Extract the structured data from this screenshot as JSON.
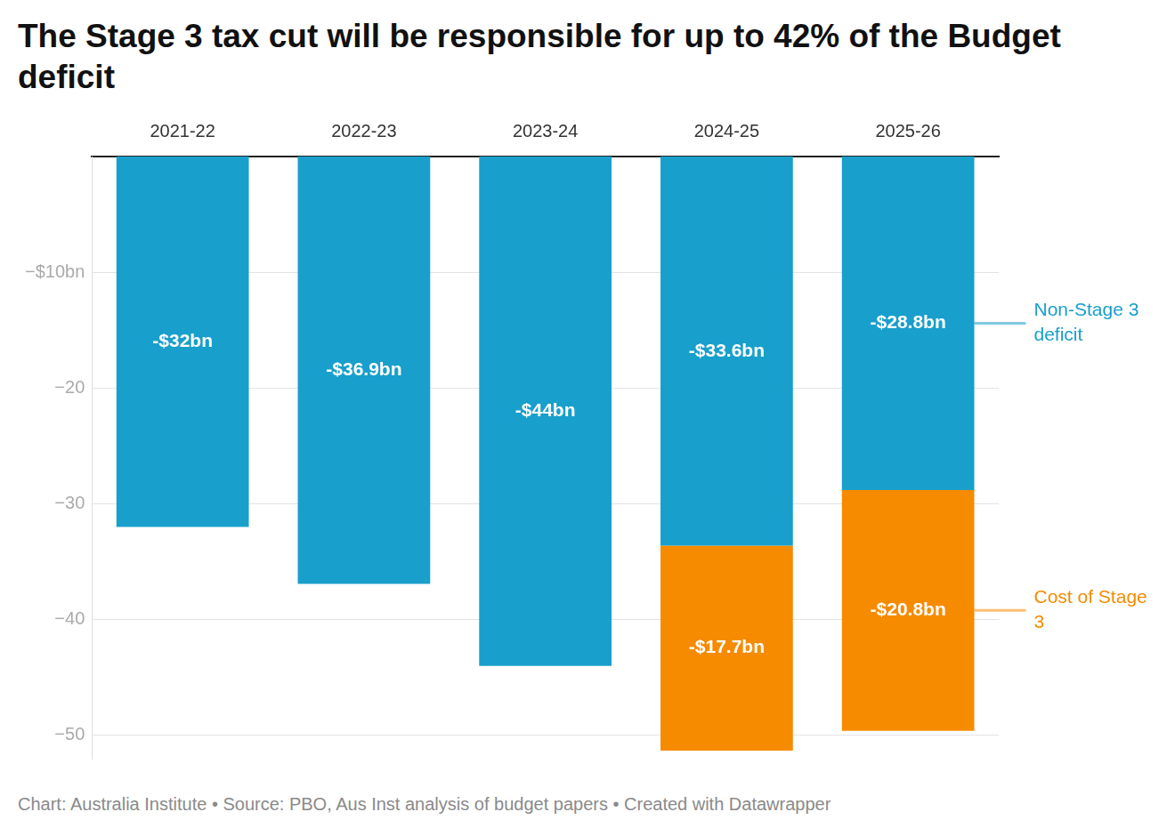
{
  "chart_data": {
    "type": "bar",
    "title": "The Stage 3 tax cut will be responsible for up to 42% of the Budget deficit",
    "source": "Chart: Australia Institute • Source: PBO, Aus Inst analysis of budget papers • Created with Datawrapper",
    "categories": [
      "2021-22",
      "2022-23",
      "2023-24",
      "2024-25",
      "2025-26"
    ],
    "series": [
      {
        "name": "Non-Stage 3 deficit",
        "color": "#189fcc",
        "values": [
          -32,
          -36.9,
          -44,
          -33.6,
          -28.8
        ],
        "value_labels": [
          "-$32bn",
          "-$36.9bn",
          "-$44bn",
          "-$33.6bn",
          "-$28.8bn"
        ]
      },
      {
        "name": "Cost of Stage 3",
        "color": "#f68b00",
        "values": [
          null,
          null,
          null,
          -17.7,
          -20.8
        ],
        "value_labels": [
          null,
          null,
          null,
          "-$17.7bn",
          "-$20.8bn"
        ]
      }
    ],
    "stacked": true,
    "data_labels": true,
    "ylim": [
      -52,
      0
    ],
    "yticks": [
      {
        "value": -10,
        "label": "−$10bn"
      },
      {
        "value": -20,
        "label": "−20"
      },
      {
        "value": -30,
        "label": "−30"
      },
      {
        "value": -40,
        "label": "−40"
      },
      {
        "value": -50,
        "label": "−50"
      }
    ],
    "grid": true,
    "legend": "right"
  }
}
